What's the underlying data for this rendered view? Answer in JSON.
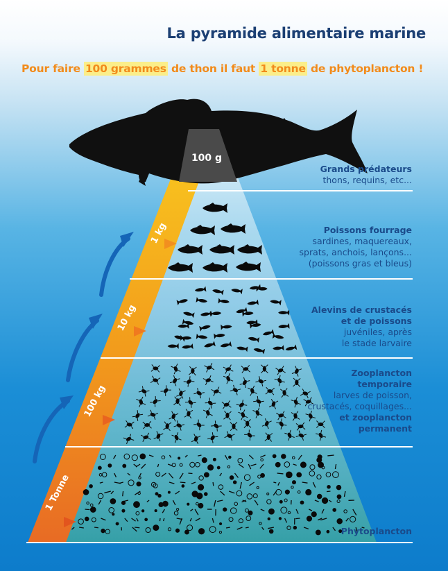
{
  "title": "La pyramide alimentaire marine",
  "subtitle": {
    "part1": "Pour faire ",
    "hl1": "100 grammes",
    "part2": " de thon il faut ",
    "hl2": "1 tonne",
    "part3": " de phytoplancton !"
  },
  "top_weight": "100 g",
  "weights": [
    "1 Tonne",
    "100 kg",
    "10 kg",
    "1 kg"
  ],
  "levels": [
    {
      "heading": "Grands prédateurs",
      "lines": [
        "thons, requins, etc..."
      ]
    },
    {
      "heading": "Poissons fourrage",
      "lines": [
        "sardines, maquereaux,",
        "sprats, anchois, lançons...",
        "(poissons gras et bleus)"
      ]
    },
    {
      "heading_lines": [
        "Alevins de crustacés",
        "et de poissons"
      ],
      "lines": [
        "juvéniles, après",
        "le stade larvaire"
      ]
    },
    {
      "heading_lines": [
        "Zooplancton",
        "temporaire"
      ],
      "lines": [
        "larves de poisson,",
        "crustacés, coquillages..."
      ],
      "heading2_lines": [
        "et zooplancton",
        "permanent"
      ]
    },
    {
      "heading": "Phytoplancton"
    }
  ],
  "colors": {
    "title": "#1b3f73",
    "subtitle": "#f28b1b",
    "highlight": "#fbee8a",
    "labels": "#1a4a8a",
    "arrows": "#1565b7",
    "band_orange": "#f0a01c",
    "silhouette": "#101010"
  }
}
